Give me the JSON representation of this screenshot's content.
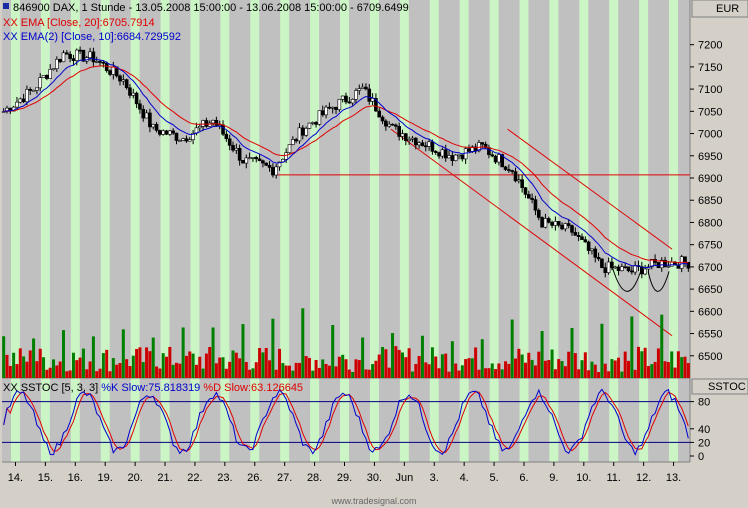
{
  "chart_data": {
    "type": "candlestick",
    "instrument": "846900",
    "title": "DAX, 1 Stunde - 13.05.2008 15:00:00 - 13.06.2008 15:00:00 - 6709.6499",
    "currency": "EUR",
    "indicator_ema20": "XX EMA [Close, 20]:6705.7914",
    "indicator_ema10": "XX EMA(2) [Close, 10]:6684.729592",
    "stoch_label": "XX SSTOC [5, 3, 3]",
    "stoch_k": "%K Slow:75.818319",
    "stoch_d": "%D Slow:63.126645",
    "stoch_panel_title": "SSTOC",
    "ylim": [
      6450,
      7260
    ],
    "yticks": [
      6500,
      6550,
      6600,
      6650,
      6700,
      6750,
      6800,
      6850,
      6900,
      6950,
      7000,
      7050,
      7100,
      7150,
      7200
    ],
    "stoch_ylim": [
      0,
      100
    ],
    "stoch_yticks": [
      0,
      20,
      40,
      80
    ],
    "stoch_levels": [
      20,
      80
    ],
    "x_labels": [
      "14.",
      "15.",
      "16.",
      "19.",
      "20.",
      "21.",
      "22.",
      "23.",
      "26.",
      "27.",
      "28.",
      "29.",
      "30.",
      "Jun",
      "3.",
      "4.",
      "5.",
      "6.",
      "9.",
      "10.",
      "11.",
      "12.",
      "13."
    ],
    "horizontal_line": 6907,
    "daily_closes": [
      7050,
      7100,
      7180,
      7170,
      7120,
      7010,
      6990,
      7030,
      6940,
      6920,
      7010,
      7060,
      7100,
      7010,
      6980,
      6950,
      6970,
      6920,
      6800,
      6780,
      6700,
      6690,
      6710
    ],
    "channel_lower": {
      "from": {
        "day": 13,
        "price": 7010
      },
      "to": {
        "day": 22.4,
        "price": 6545
      }
    },
    "channel_upper": {
      "from": {
        "day": 16.9,
        "price": 7010
      },
      "to": {
        "day": 22.4,
        "price": 6740
      }
    },
    "footer": "www.tradesignal.com"
  }
}
